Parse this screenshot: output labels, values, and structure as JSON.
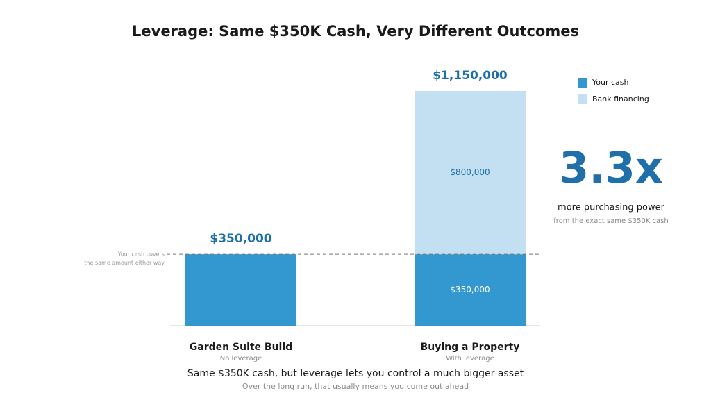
{
  "chart_data": {
    "type": "bar",
    "stacked": true,
    "title": "Leverage: Same $350K Cash, Very Different Outcomes",
    "categories": [
      "Garden Suite Build",
      "Buying a Property"
    ],
    "category_notes": [
      "No leverage",
      "With leverage"
    ],
    "series": [
      {
        "name": "Your cash",
        "color": "#3398cf",
        "values": [
          350000,
          350000
        ],
        "value_labels": [
          null,
          "$350,000"
        ]
      },
      {
        "name": "Bank financing",
        "color": "#c2e0f2",
        "values": [
          null,
          800000
        ],
        "value_labels": [
          null,
          "$800,000"
        ]
      }
    ],
    "total_labels": [
      "$350,000",
      "$1,150,000"
    ],
    "ylim": [
      0,
      1150000
    ],
    "reference_line": {
      "value": 350000,
      "label": [
        "Your cash covers",
        "the same amount either way"
      ]
    },
    "callout": {
      "value": "3.3x",
      "text": "more purchasing power",
      "subtext": "from the exact same $350K cash"
    },
    "footer": {
      "text": "Same $350K cash, but leverage lets you control a much bigger asset",
      "subtext": "Over the long run, that usually means you come out ahead"
    },
    "legend": "top-right"
  }
}
